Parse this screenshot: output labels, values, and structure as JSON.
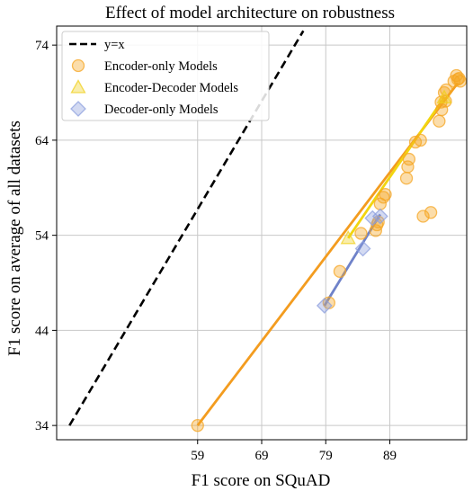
{
  "chart_data": {
    "type": "scatter",
    "title": "Effect of model architecture on robustness",
    "xlabel": "F1 score on SQuAD",
    "ylabel": "F1 score on average of all datasets",
    "xlim": [
      37,
      101
    ],
    "ylim": [
      32.5,
      76
    ],
    "x_ticks": [
      59,
      69,
      79,
      89
    ],
    "y_ticks": [
      34,
      44,
      54,
      64,
      74
    ],
    "grid": true,
    "legend_position": "top-left",
    "legend": [
      {
        "label": "y=x",
        "marker": "dashed-line",
        "color": "#000000"
      },
      {
        "label": "Encoder-only Models",
        "marker": "circle",
        "color": "#f5a623"
      },
      {
        "label": "Encoder-Decoder Models",
        "marker": "triangle",
        "color": "#f0d020"
      },
      {
        "label": "Decoder-only Models",
        "marker": "diamond",
        "color": "#8c9fde"
      }
    ],
    "reference_line": {
      "label": "y=x",
      "x": [
        39,
        75.5
      ],
      "y": [
        34,
        75.5
      ]
    },
    "series": [
      {
        "name": "Encoder-only Models",
        "marker": "circle",
        "color": "#f5a623",
        "points": [
          [
            59.0,
            34.0
          ],
          [
            79.5,
            46.9
          ],
          [
            81.2,
            50.2
          ],
          [
            84.5,
            54.2
          ],
          [
            86.8,
            54.5
          ],
          [
            87.0,
            55.1
          ],
          [
            87.2,
            55.4
          ],
          [
            87.5,
            57.3
          ],
          [
            88.0,
            58.0
          ],
          [
            88.3,
            58.3
          ],
          [
            91.6,
            60.0
          ],
          [
            91.8,
            61.2
          ],
          [
            92.0,
            62.0
          ],
          [
            93.0,
            63.8
          ],
          [
            93.8,
            64.0
          ],
          [
            94.2,
            56.0
          ],
          [
            95.4,
            56.4
          ],
          [
            96.7,
            66.0
          ],
          [
            97.0,
            68.0
          ],
          [
            97.1,
            67.2
          ],
          [
            97.5,
            69.0
          ],
          [
            97.8,
            69.3
          ],
          [
            97.7,
            68.1
          ],
          [
            99.0,
            70.2
          ],
          [
            99.4,
            70.8
          ],
          [
            99.6,
            70.4
          ],
          [
            100.0,
            70.2
          ],
          [
            99.8,
            70.5
          ]
        ],
        "fit": {
          "x": [
            59.0,
            99.6
          ],
          "y": [
            34.0,
            70.0
          ]
        }
      },
      {
        "name": "Encoder-Decoder Models",
        "marker": "triangle",
        "color": "#f0d020",
        "points": [
          [
            82.5,
            53.7
          ],
          [
            97.5,
            68.5
          ]
        ],
        "fit": {
          "x": [
            82.5,
            97.5
          ],
          "y": [
            53.7,
            68.5
          ]
        }
      },
      {
        "name": "Decoder-only Models",
        "marker": "diamond",
        "color": "#8c9fde",
        "points": [
          [
            78.8,
            46.6
          ],
          [
            84.8,
            52.6
          ],
          [
            86.3,
            55.8
          ],
          [
            87.5,
            56.0
          ]
        ],
        "fit": {
          "x": [
            78.8,
            87.5
          ],
          "y": [
            46.6,
            56.2
          ]
        }
      }
    ]
  }
}
